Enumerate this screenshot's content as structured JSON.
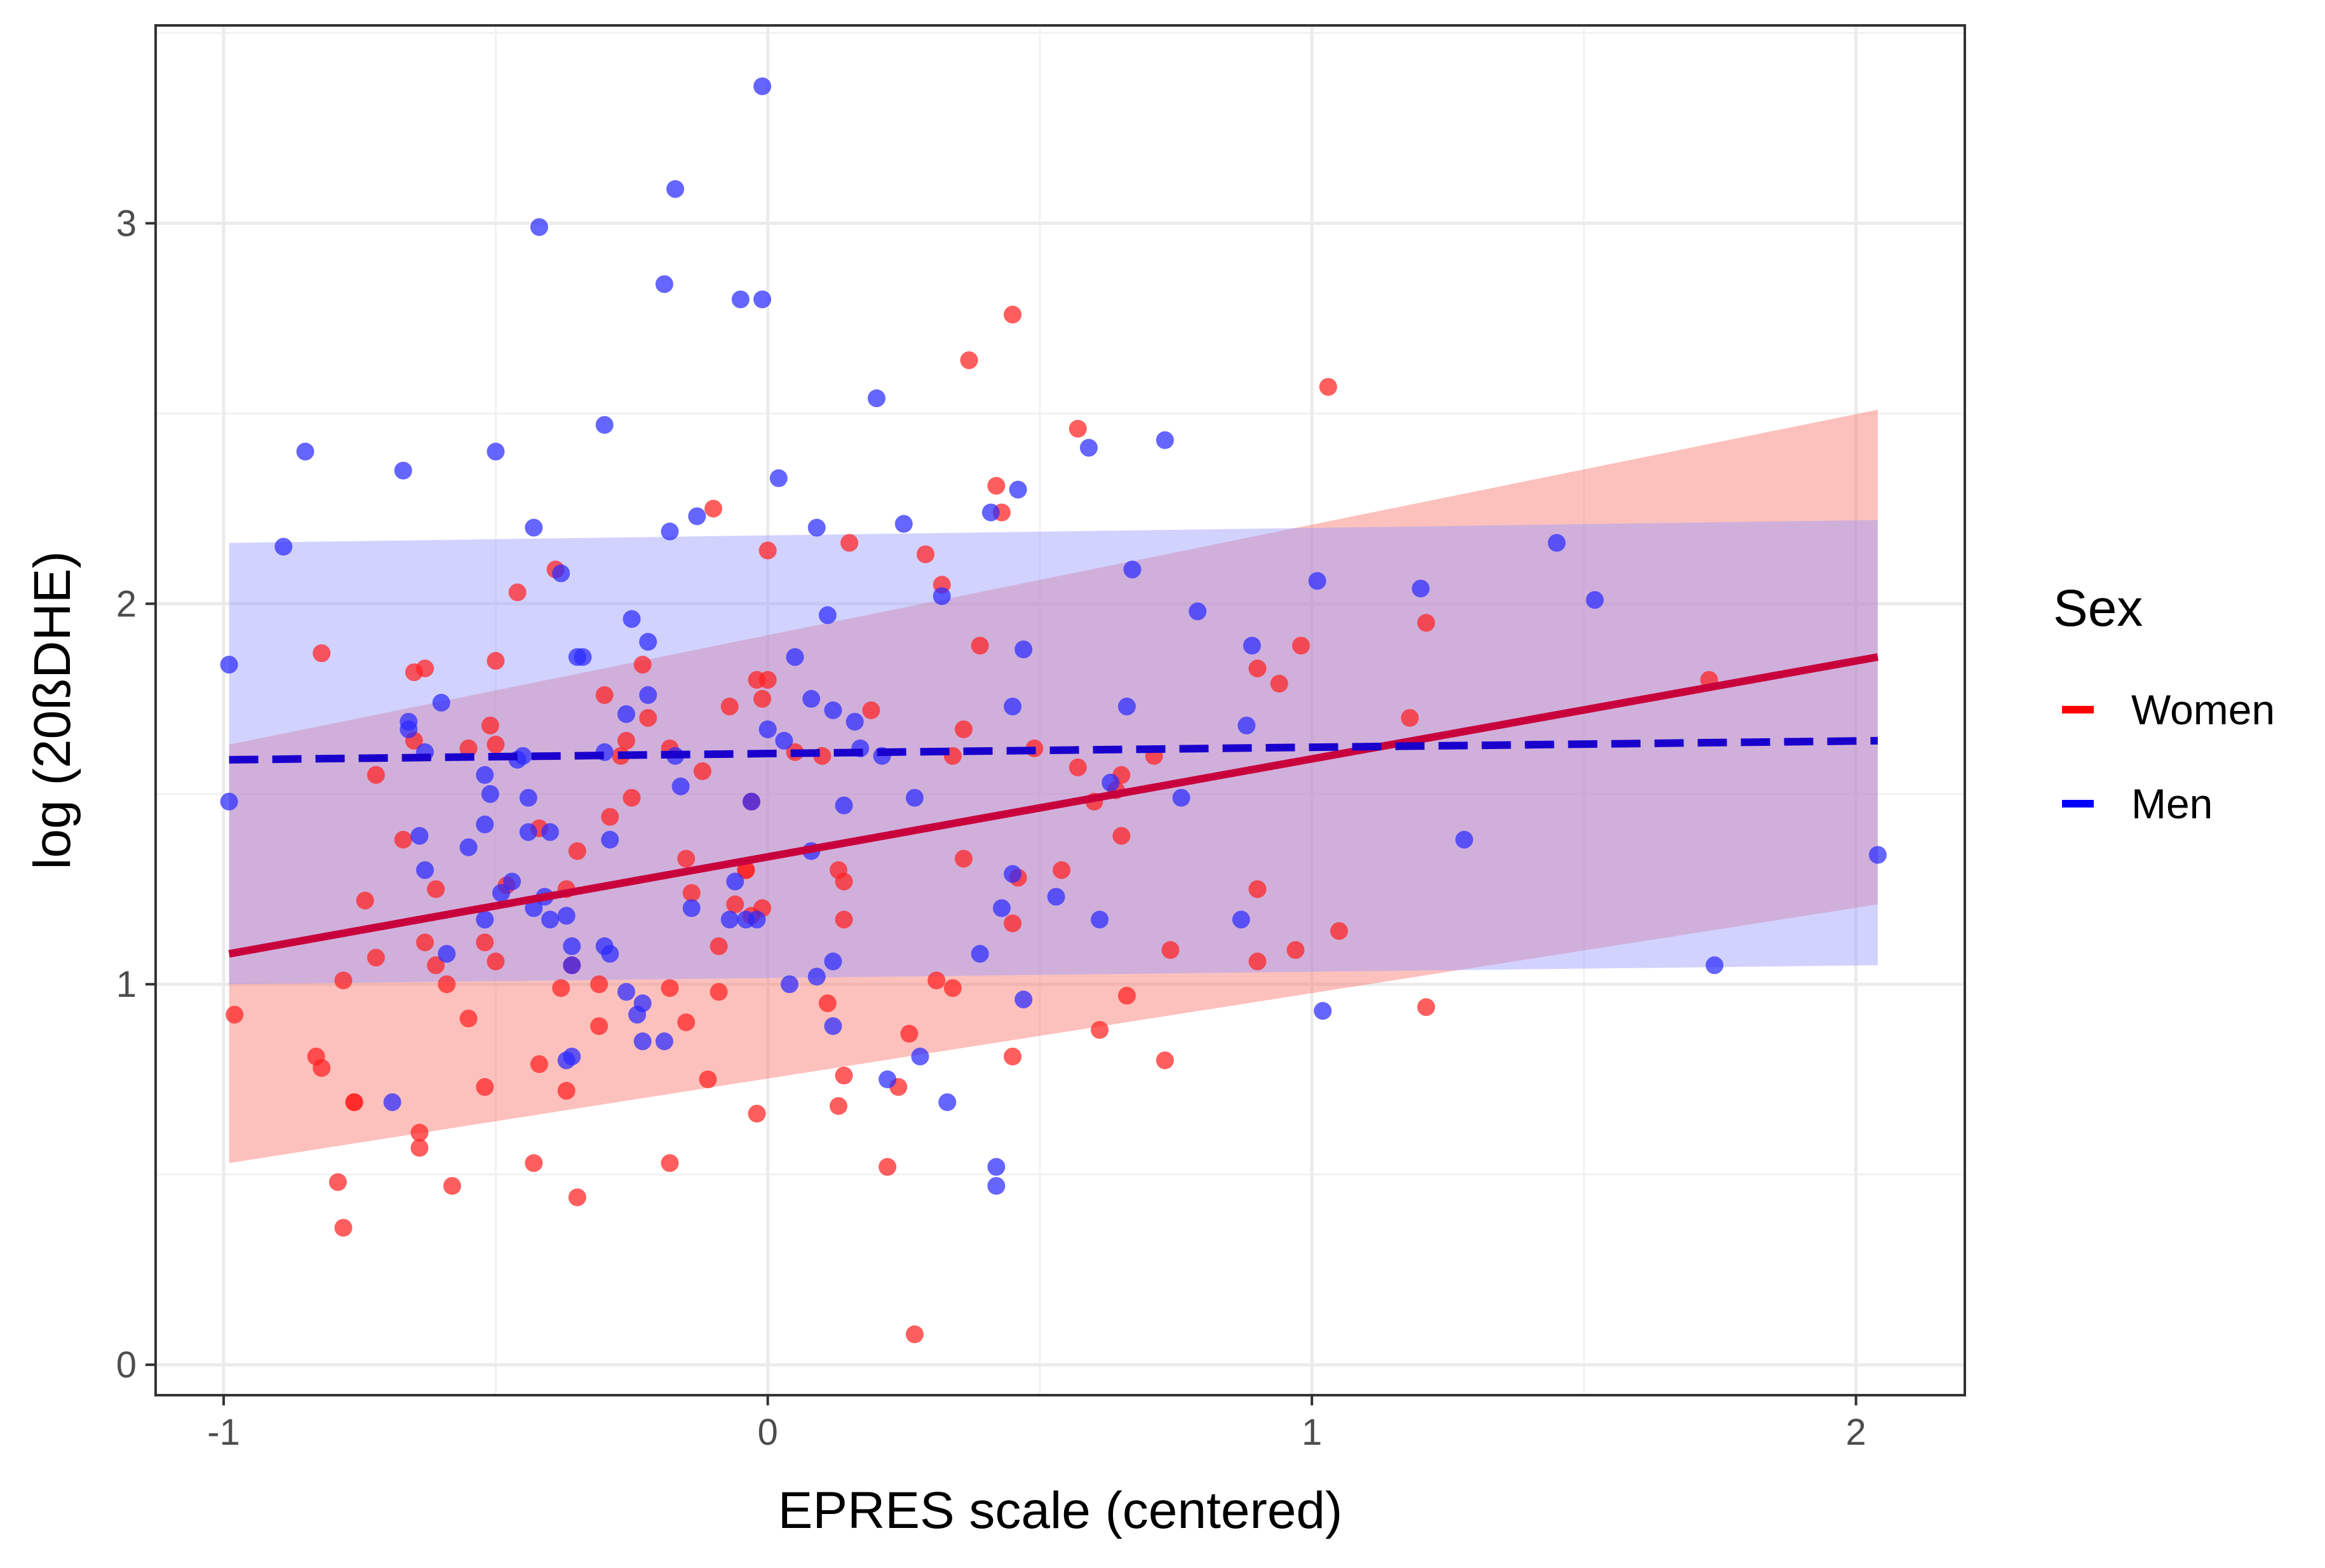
{
  "chart_data": {
    "type": "scatter",
    "xlabel": "EPRES scale (centered)",
    "ylabel": "log (20ßDHE)",
    "xlim": [
      -1.125,
      2.2
    ],
    "ylim": [
      -0.08,
      3.52
    ],
    "xticks": [
      -1,
      0,
      1,
      2
    ],
    "yticks": [
      0,
      1,
      2,
      3
    ],
    "x_tick_labels": [
      "-1",
      "0",
      "1",
      "2"
    ],
    "y_tick_labels": [
      "0",
      "1",
      "2",
      "3"
    ],
    "grid": true,
    "legend": {
      "title": "Sex",
      "position": "right",
      "entries": [
        {
          "label": "Women",
          "color": "#ff0000",
          "linestyle": "solid"
        },
        {
          "label": "Men",
          "color": "#0000ff",
          "linestyle": "dashed"
        }
      ]
    },
    "series": [
      {
        "name": "Women",
        "color": "#ff2020",
        "line_color": "#c8003c",
        "band_color": "#f8766d",
        "fit_line": {
          "x": [
            -0.99,
            2.04
          ],
          "y": [
            1.08,
            1.86
          ]
        },
        "ci_band": {
          "x": [
            -0.99,
            2.04
          ],
          "lower": [
            0.53,
            1.21
          ],
          "upper": [
            1.63,
            2.51
          ]
        },
        "points": [
          [
            -0.98,
            0.92
          ],
          [
            -0.83,
            0.81
          ],
          [
            -0.82,
            0.78
          ],
          [
            -0.82,
            1.87
          ],
          [
            -0.79,
            0.48
          ],
          [
            -0.78,
            1.01
          ],
          [
            -0.78,
            0.36
          ],
          [
            -0.76,
            0.69
          ],
          [
            -0.76,
            0.69
          ],
          [
            -0.74,
            1.22
          ],
          [
            -0.72,
            1.07
          ],
          [
            -0.72,
            1.55
          ],
          [
            -0.67,
            1.38
          ],
          [
            -0.65,
            1.82
          ],
          [
            -0.65,
            1.64
          ],
          [
            -0.64,
            0.61
          ],
          [
            -0.64,
            0.57
          ],
          [
            -0.63,
            1.83
          ],
          [
            -0.63,
            1.11
          ],
          [
            -0.61,
            1.05
          ],
          [
            -0.61,
            1.25
          ],
          [
            -0.59,
            1.0
          ],
          [
            -0.58,
            0.47
          ],
          [
            -0.55,
            1.62
          ],
          [
            -0.55,
            0.91
          ],
          [
            -0.52,
            1.11
          ],
          [
            -0.52,
            0.73
          ],
          [
            -0.51,
            1.68
          ],
          [
            -0.5,
            1.06
          ],
          [
            -0.5,
            1.85
          ],
          [
            -0.5,
            1.63
          ],
          [
            -0.48,
            1.26
          ],
          [
            -0.46,
            2.03
          ],
          [
            -0.43,
            0.53
          ],
          [
            -0.42,
            0.79
          ],
          [
            -0.42,
            1.41
          ],
          [
            -0.39,
            2.09
          ],
          [
            -0.38,
            0.99
          ],
          [
            -0.37,
            0.72
          ],
          [
            -0.37,
            1.25
          ],
          [
            -0.36,
            1.05
          ],
          [
            -0.35,
            0.44
          ],
          [
            -0.35,
            1.35
          ],
          [
            -0.31,
            0.89
          ],
          [
            -0.31,
            1.0
          ],
          [
            -0.3,
            1.76
          ],
          [
            -0.29,
            1.44
          ],
          [
            -0.27,
            1.6
          ],
          [
            -0.26,
            1.64
          ],
          [
            -0.25,
            1.49
          ],
          [
            -0.23,
            1.84
          ],
          [
            -0.22,
            1.7
          ],
          [
            -0.18,
            0.53
          ],
          [
            -0.18,
            0.99
          ],
          [
            -0.18,
            1.62
          ],
          [
            -0.15,
            1.33
          ],
          [
            -0.15,
            0.9
          ],
          [
            -0.14,
            1.24
          ],
          [
            -0.12,
            1.56
          ],
          [
            -0.11,
            0.75
          ],
          [
            -0.1,
            2.25
          ],
          [
            -0.09,
            1.1
          ],
          [
            -0.09,
            0.98
          ],
          [
            -0.07,
            1.73
          ],
          [
            -0.06,
            1.21
          ],
          [
            -0.04,
            1.3
          ],
          [
            -0.04,
            1.3
          ],
          [
            -0.03,
            1.48
          ],
          [
            -0.03,
            1.18
          ],
          [
            -0.02,
            0.66
          ],
          [
            -0.02,
            1.8
          ],
          [
            -0.01,
            1.75
          ],
          [
            -0.01,
            1.2
          ],
          [
            0.0,
            2.14
          ],
          [
            0.0,
            1.8
          ],
          [
            0.05,
            1.61
          ],
          [
            0.1,
            1.6
          ],
          [
            0.11,
            0.95
          ],
          [
            0.13,
            0.68
          ],
          [
            0.13,
            1.3
          ],
          [
            0.14,
            0.76
          ],
          [
            0.14,
            1.17
          ],
          [
            0.14,
            1.27
          ],
          [
            0.15,
            2.16
          ],
          [
            0.19,
            1.72
          ],
          [
            0.22,
            0.52
          ],
          [
            0.24,
            0.73
          ],
          [
            0.26,
            0.87
          ],
          [
            0.27,
            0.08
          ],
          [
            0.29,
            2.13
          ],
          [
            0.31,
            1.01
          ],
          [
            0.32,
            2.05
          ],
          [
            0.34,
            1.6
          ],
          [
            0.34,
            0.99
          ],
          [
            0.36,
            1.33
          ],
          [
            0.36,
            1.67
          ],
          [
            0.37,
            2.64
          ],
          [
            0.39,
            1.89
          ],
          [
            0.42,
            2.31
          ],
          [
            0.43,
            2.24
          ],
          [
            0.45,
            0.81
          ],
          [
            0.45,
            1.16
          ],
          [
            0.45,
            2.76
          ],
          [
            0.46,
            1.28
          ],
          [
            0.49,
            1.62
          ],
          [
            0.54,
            1.3
          ],
          [
            0.57,
            1.57
          ],
          [
            0.57,
            2.46
          ],
          [
            0.6,
            1.48
          ],
          [
            0.61,
            0.88
          ],
          [
            0.64,
            1.51
          ],
          [
            0.65,
            1.39
          ],
          [
            0.65,
            1.55
          ],
          [
            0.66,
            0.97
          ],
          [
            0.71,
            1.6
          ],
          [
            0.73,
            0.8
          ],
          [
            0.74,
            1.09
          ],
          [
            0.9,
            1.25
          ],
          [
            0.9,
            1.06
          ],
          [
            0.9,
            1.83
          ],
          [
            0.94,
            1.79
          ],
          [
            0.97,
            1.09
          ],
          [
            0.98,
            1.89
          ],
          [
            1.03,
            2.57
          ],
          [
            1.05,
            1.14
          ],
          [
            1.18,
            1.7
          ],
          [
            1.21,
            1.95
          ],
          [
            1.21,
            0.94
          ],
          [
            1.73,
            1.8
          ]
        ]
      },
      {
        "name": "Men",
        "color": "#2a2aff",
        "line_color": "#1a00cc",
        "band_color": "#9c9cff",
        "fit_line": {
          "x": [
            -0.99,
            2.04
          ],
          "y": [
            1.59,
            1.64
          ]
        },
        "ci_band": {
          "x": [
            -0.99,
            2.04
          ],
          "lower": [
            1.0,
            1.05
          ],
          "upper": [
            2.16,
            2.22
          ]
        },
        "points": [
          [
            -0.99,
            1.84
          ],
          [
            -0.99,
            1.48
          ],
          [
            -0.89,
            2.15
          ],
          [
            -0.85,
            2.4
          ],
          [
            -0.69,
            0.69
          ],
          [
            -0.67,
            2.35
          ],
          [
            -0.66,
            1.69
          ],
          [
            -0.66,
            1.67
          ],
          [
            -0.64,
            1.39
          ],
          [
            -0.63,
            1.3
          ],
          [
            -0.63,
            1.61
          ],
          [
            -0.6,
            1.74
          ],
          [
            -0.59,
            1.08
          ],
          [
            -0.55,
            1.36
          ],
          [
            -0.52,
            1.55
          ],
          [
            -0.52,
            1.42
          ],
          [
            -0.52,
            1.17
          ],
          [
            -0.51,
            1.5
          ],
          [
            -0.5,
            2.4
          ],
          [
            -0.49,
            1.24
          ],
          [
            -0.47,
            1.27
          ],
          [
            -0.46,
            1.59
          ],
          [
            -0.45,
            1.6
          ],
          [
            -0.44,
            1.49
          ],
          [
            -0.44,
            1.4
          ],
          [
            -0.43,
            2.2
          ],
          [
            -0.43,
            1.2
          ],
          [
            -0.42,
            2.99
          ],
          [
            -0.41,
            1.23
          ],
          [
            -0.4,
            1.17
          ],
          [
            -0.4,
            1.4
          ],
          [
            -0.38,
            2.08
          ],
          [
            -0.37,
            1.18
          ],
          [
            -0.37,
            0.8
          ],
          [
            -0.36,
            1.1
          ],
          [
            -0.36,
            0.81
          ],
          [
            -0.36,
            1.05
          ],
          [
            -0.35,
            1.86
          ],
          [
            -0.34,
            1.86
          ],
          [
            -0.3,
            1.1
          ],
          [
            -0.3,
            1.61
          ],
          [
            -0.3,
            2.47
          ],
          [
            -0.29,
            1.08
          ],
          [
            -0.29,
            1.38
          ],
          [
            -0.26,
            0.98
          ],
          [
            -0.26,
            1.71
          ],
          [
            -0.25,
            1.96
          ],
          [
            -0.24,
            0.92
          ],
          [
            -0.23,
            0.85
          ],
          [
            -0.23,
            0.95
          ],
          [
            -0.22,
            1.76
          ],
          [
            -0.22,
            1.9
          ],
          [
            -0.19,
            0.85
          ],
          [
            -0.19,
            2.84
          ],
          [
            -0.18,
            2.19
          ],
          [
            -0.17,
            3.09
          ],
          [
            -0.17,
            1.6
          ],
          [
            -0.16,
            1.52
          ],
          [
            -0.14,
            1.2
          ],
          [
            -0.13,
            2.23
          ],
          [
            -0.07,
            1.17
          ],
          [
            -0.06,
            1.27
          ],
          [
            -0.05,
            2.8
          ],
          [
            -0.04,
            1.17
          ],
          [
            -0.03,
            1.48
          ],
          [
            -0.02,
            1.17
          ],
          [
            -0.01,
            3.36
          ],
          [
            -0.01,
            2.8
          ],
          [
            0.0,
            1.67
          ],
          [
            0.02,
            2.33
          ],
          [
            0.03,
            1.64
          ],
          [
            0.04,
            1.0
          ],
          [
            0.05,
            1.86
          ],
          [
            0.08,
            1.35
          ],
          [
            0.08,
            1.75
          ],
          [
            0.09,
            1.02
          ],
          [
            0.09,
            2.2
          ],
          [
            0.11,
            1.97
          ],
          [
            0.12,
            1.06
          ],
          [
            0.12,
            0.89
          ],
          [
            0.12,
            1.72
          ],
          [
            0.14,
            1.47
          ],
          [
            0.16,
            1.69
          ],
          [
            0.17,
            1.62
          ],
          [
            0.2,
            2.54
          ],
          [
            0.21,
            1.6
          ],
          [
            0.22,
            0.75
          ],
          [
            0.25,
            2.21
          ],
          [
            0.27,
            1.49
          ],
          [
            0.28,
            0.81
          ],
          [
            0.32,
            2.02
          ],
          [
            0.33,
            0.69
          ],
          [
            0.39,
            1.08
          ],
          [
            0.41,
            2.24
          ],
          [
            0.42,
            0.52
          ],
          [
            0.42,
            0.47
          ],
          [
            0.43,
            1.2
          ],
          [
            0.45,
            1.29
          ],
          [
            0.45,
            1.73
          ],
          [
            0.46,
            2.3
          ],
          [
            0.47,
            0.96
          ],
          [
            0.47,
            1.88
          ],
          [
            0.53,
            1.23
          ],
          [
            0.59,
            2.41
          ],
          [
            0.61,
            1.17
          ],
          [
            0.63,
            1.53
          ],
          [
            0.66,
            1.73
          ],
          [
            0.67,
            2.09
          ],
          [
            0.73,
            2.43
          ],
          [
            0.76,
            1.49
          ],
          [
            0.79,
            1.98
          ],
          [
            0.87,
            1.17
          ],
          [
            0.88,
            1.68
          ],
          [
            0.89,
            1.89
          ],
          [
            1.01,
            2.06
          ],
          [
            1.02,
            0.93
          ],
          [
            1.2,
            2.04
          ],
          [
            1.28,
            1.38
          ],
          [
            1.45,
            2.16
          ],
          [
            1.52,
            2.01
          ],
          [
            1.74,
            1.05
          ],
          [
            2.04,
            1.34
          ]
        ]
      }
    ]
  }
}
